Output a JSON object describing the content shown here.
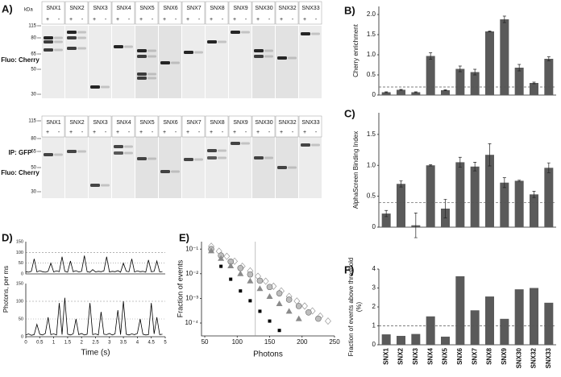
{
  "blots": {
    "panel_label": "A)",
    "kda_label": "kDa",
    "markers": [
      115,
      80,
      65,
      50,
      30
    ],
    "lanes": [
      "SNX1",
      "SNX2",
      "SNX3",
      "SNX4",
      "SNX5",
      "SNX6",
      "SNX7",
      "SNX8",
      "SNX9",
      "SNX30",
      "SNX32",
      "SNX33"
    ],
    "signs": [
      "+",
      "-"
    ],
    "top_label": "Fluo: Cherry",
    "bottom_labels": [
      "IP: GFP",
      "Fluo: Cherry"
    ]
  },
  "chart_data": [
    {
      "type": "bar",
      "panel_label": "B)",
      "ylabel": "Cherry enrichment",
      "values": [
        0.07,
        0.13,
        0.07,
        0.97,
        0.12,
        0.65,
        0.57,
        1.58,
        1.88,
        0.68,
        0.3,
        0.9
      ],
      "errors": [
        0.01,
        0.01,
        0.01,
        0.08,
        0.01,
        0.07,
        0.07,
        0.01,
        0.08,
        0.08,
        0.02,
        0.05
      ],
      "color": "#5a5a5a",
      "ylim": [
        0,
        2.2
      ],
      "yticks": [
        0,
        0.5,
        {
          "value": 1,
          "label": "1.0"
        },
        1.5,
        {
          "value": 2,
          "label": "2.0"
        }
      ],
      "threshold": 0.2
    },
    {
      "type": "bar",
      "panel_label": "C)",
      "ylabel": "AlphaScreen  Binding Index",
      "values": [
        0.22,
        0.7,
        0.03,
        1.0,
        0.3,
        1.05,
        0.98,
        1.17,
        0.72,
        0.75,
        0.53,
        0.96
      ],
      "errors": [
        0.05,
        0.05,
        0.2,
        0.01,
        0.15,
        0.08,
        0.07,
        0.18,
        0.08,
        0.01,
        0.05,
        0.08
      ],
      "color": "#5a5a5a",
      "ylim": [
        0,
        1.85
      ],
      "yticks": [
        0,
        0.5,
        {
          "value": 1,
          "label": "1.0"
        },
        1.5
      ],
      "threshold": 0.4
    },
    {
      "type": "line",
      "panel_label": "D)",
      "ylabel": "Photons, per ms",
      "xlabel": "Time (s)",
      "x": [
        0,
        0.1,
        0.2,
        0.3,
        0.4,
        0.5,
        0.6,
        0.7,
        0.8,
        0.9,
        1,
        1.1,
        1.2,
        1.3,
        1.4,
        1.5,
        1.6,
        1.7,
        1.8,
        1.9,
        2,
        2.1,
        2.2,
        2.3,
        2.4,
        2.5,
        2.6,
        2.7,
        2.8,
        2.9,
        3,
        3.1,
        3.2,
        3.3,
        3.4,
        3.5,
        3.6,
        3.7,
        3.8,
        3.9,
        4,
        4.1,
        4.2,
        4.3,
        4.4,
        4.5,
        4.6,
        4.7,
        4.8,
        4.9
      ],
      "series": [
        {
          "color": "#000000",
          "values": [
            10,
            8,
            12,
            70,
            9,
            15,
            10,
            8,
            12,
            50,
            9,
            14,
            10,
            80,
            12,
            8,
            60,
            10,
            15,
            9,
            12,
            85,
            10,
            8,
            20,
            9,
            12,
            10,
            14,
            80,
            9,
            12,
            10,
            15,
            8,
            50,
            12,
            10,
            70,
            9,
            14,
            10,
            12,
            8,
            65,
            10,
            12,
            60,
            9,
            11
          ]
        },
        {
          "color": "#000000",
          "values": [
            5,
            8,
            4,
            6,
            35,
            7,
            5,
            9,
            55,
            6,
            8,
            5,
            95,
            6,
            110,
            7,
            5,
            8,
            50,
            6,
            9,
            5,
            7,
            95,
            6,
            8,
            5,
            70,
            7,
            6,
            9,
            5,
            8,
            75,
            6,
            100,
            7,
            5,
            8,
            6,
            9,
            50,
            7,
            5,
            6,
            95,
            8,
            55,
            6,
            7
          ]
        }
      ],
      "xlim": [
        0,
        5
      ],
      "xticks": [
        0,
        0.5,
        1,
        1.5,
        2,
        2.5,
        3,
        3.5,
        4,
        4.5,
        5
      ],
      "ylim": [
        0,
        150
      ],
      "yticks": [
        0,
        50,
        100,
        150
      ],
      "hlines": [
        100,
        50
      ]
    },
    {
      "type": "scatter",
      "panel_label": "E)",
      "ylabel": "Fraction of events",
      "xlabel": "Photons",
      "log_y": true,
      "xlim": [
        45,
        250
      ],
      "xticks": [
        50,
        100,
        150,
        200,
        250
      ],
      "ylim": [
        3e-05,
        0.2
      ],
      "yticks": [
        {
          "value": 0.0001,
          "label": "10⁻⁴"
        },
        {
          "value": 0.001,
          "label": "10⁻³"
        },
        {
          "value": 0.01,
          "label": "10⁻²"
        },
        {
          "value": 0.1,
          "label": "10⁻¹"
        }
      ],
      "vline": 128,
      "series": [
        {
          "marker": "diamond",
          "color": "#ffffff",
          "x": [
            60,
            72,
            84,
            96,
            108,
            120,
            132,
            144,
            156,
            168,
            180,
            192,
            204,
            216,
            228,
            240
          ],
          "values": [
            0.13,
            0.082,
            0.051,
            0.032,
            0.02,
            0.013,
            0.0079,
            0.005,
            0.0031,
            0.002,
            0.0012,
            0.00078,
            0.00049,
            0.00031,
            0.00019,
            0.00012
          ]
        },
        {
          "marker": "circle",
          "color": "#bdbdbd",
          "x": [
            60,
            75,
            90,
            105,
            120,
            135,
            150,
            165,
            180,
            195,
            210,
            225
          ],
          "values": [
            0.1,
            0.055,
            0.031,
            0.017,
            0.0094,
            0.0052,
            0.0029,
            0.0016,
            0.00089,
            0.00049,
            0.00027,
            0.00015
          ]
        },
        {
          "marker": "triangle",
          "color": "#8a8a8a",
          "x": [
            60,
            75,
            90,
            105,
            120,
            135,
            150,
            165,
            180,
            195
          ],
          "values": [
            0.085,
            0.042,
            0.021,
            0.01,
            0.0051,
            0.0025,
            0.0012,
            0.00061,
            0.0003,
            0.00015
          ]
        },
        {
          "marker": "square",
          "color": "#000000",
          "x": [
            75,
            90,
            105,
            120,
            135,
            150,
            165
          ],
          "values": [
            0.02,
            0.006,
            0.002,
            0.0008,
            0.0003,
            0.00012,
            5e-05
          ]
        }
      ]
    },
    {
      "type": "bar",
      "panel_label": "F)",
      "ylabel": [
        "Fraction of events above threshold",
        "(%)"
      ],
      "categories": [
        "SNX1",
        "SNX2",
        "SNX3",
        "SNX4",
        "SNX5",
        "SNX6",
        "SNX7",
        "SNX8",
        "SNX9",
        "SNX30",
        "SNX32",
        "SNX33"
      ],
      "values": [
        0.55,
        0.47,
        0.57,
        1.5,
        0.43,
        3.62,
        1.82,
        2.55,
        1.37,
        2.93,
        3.0,
        2.22
      ],
      "color": "#5a5a5a",
      "ylim": [
        0,
        4
      ],
      "yticks": [
        0,
        1,
        2,
        3,
        4
      ],
      "threshold": 1
    }
  ]
}
